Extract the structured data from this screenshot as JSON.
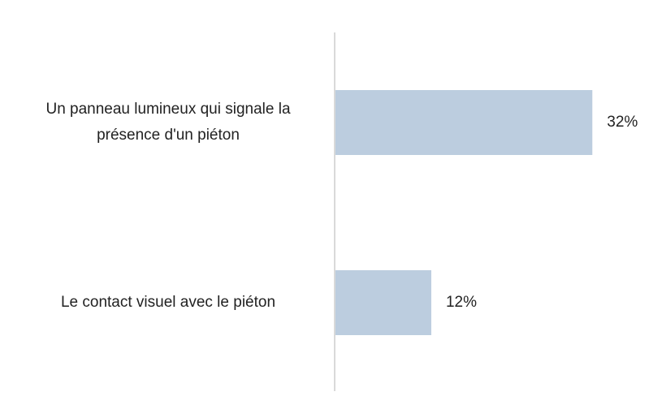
{
  "chart_data": {
    "type": "hbar",
    "categories": [
      "Un panneau lumineux qui signale la présence d'un piéton",
      "Le contact visuel avec le piéton"
    ],
    "values": [
      32,
      12
    ],
    "value_labels": [
      "32%",
      "12%"
    ],
    "color": "#bccddf",
    "xlim": [
      0,
      35
    ]
  }
}
